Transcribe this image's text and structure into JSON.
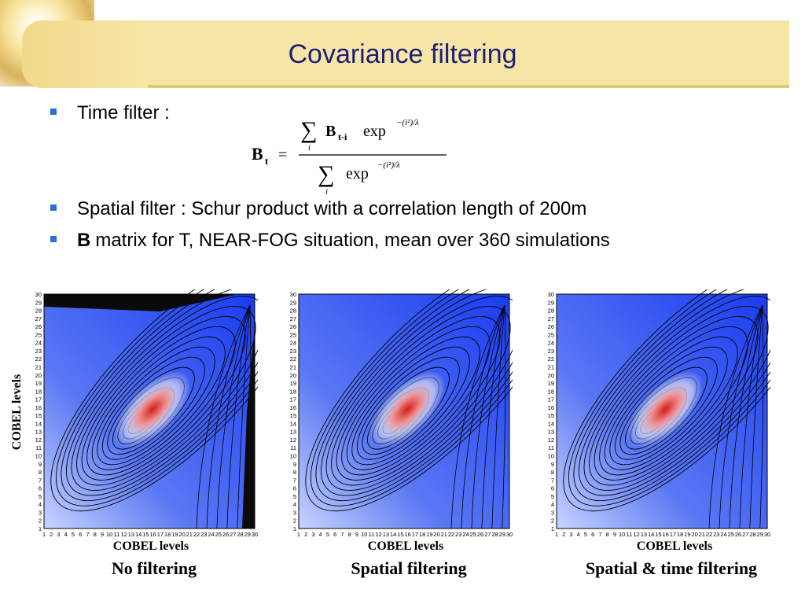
{
  "slide": {
    "title": "Covariance filtering",
    "bullets": {
      "time_filter": "Time filter :",
      "spatial_filter": "Spatial filter : Schur product with a correlation length of 200m",
      "b_matrix_bold": "B",
      "b_matrix_rest": "matrix for T, NEAR-FOG situation, mean over 360 simulations"
    },
    "formula": {
      "lhs_symbol": "B",
      "lhs_subscript": "t",
      "equals": "=",
      "sum_symbol": "∑",
      "sum_index": "i",
      "num_symbol": "B",
      "num_subscript": "t-i",
      "exp": "exp",
      "exponent": "−(i²)/λ"
    }
  },
  "chart_data": [
    {
      "type": "heatmap",
      "title": "No filtering",
      "xlabel": "COBEL levels",
      "ylabel": "COBEL levels",
      "x_ticks": [
        "1",
        "2",
        "3",
        "4",
        "5",
        "6",
        "7",
        "8",
        "9",
        "10",
        "11",
        "12",
        "13",
        "14",
        "15",
        "16",
        "17",
        "18",
        "19",
        "20",
        "21",
        "22",
        "23",
        "24",
        "25",
        "26",
        "27",
        "28",
        "29",
        "30"
      ],
      "y_ticks": [
        "1",
        "2",
        "3",
        "4",
        "5",
        "6",
        "7",
        "8",
        "9",
        "10",
        "11",
        "12",
        "13",
        "14",
        "15",
        "16",
        "17",
        "18",
        "19",
        "20",
        "21",
        "22",
        "23",
        "24",
        "25",
        "26",
        "27",
        "28",
        "29",
        "30"
      ],
      "xlim": [
        1,
        30
      ],
      "ylim": [
        1,
        30
      ],
      "peak": [
        14,
        14
      ],
      "colors": {
        "low": "#1a3cf0",
        "mid": "#ffffff",
        "high": "#d21e1e"
      }
    },
    {
      "type": "heatmap",
      "title": "Spatial filtering",
      "xlabel": "COBEL levels",
      "x_ticks": [
        "1",
        "2",
        "3",
        "4",
        "5",
        "6",
        "7",
        "8",
        "9",
        "10",
        "11",
        "12",
        "13",
        "14",
        "15",
        "16",
        "17",
        "18",
        "19",
        "20",
        "21",
        "22",
        "23",
        "24",
        "25",
        "26",
        "27",
        "28",
        "29",
        "30"
      ],
      "y_ticks": [
        "1",
        "2",
        "3",
        "4",
        "5",
        "6",
        "7",
        "8",
        "9",
        "10",
        "11",
        "12",
        "13",
        "14",
        "15",
        "16",
        "17",
        "18",
        "19",
        "20",
        "21",
        "22",
        "23",
        "24",
        "25",
        "26",
        "27",
        "28",
        "29",
        "30"
      ],
      "xlim": [
        1,
        30
      ],
      "ylim": [
        1,
        30
      ],
      "peak": [
        14,
        14
      ],
      "colors": {
        "low": "#1a3cf0",
        "mid": "#ffffff",
        "high": "#d21e1e"
      }
    },
    {
      "type": "heatmap",
      "title": "Spatial & time filtering",
      "xlabel": "COBEL levels",
      "x_ticks": [
        "1",
        "2",
        "3",
        "4",
        "5",
        "6",
        "7",
        "8",
        "9",
        "10",
        "11",
        "12",
        "13",
        "14",
        "15",
        "16",
        "17",
        "18",
        "19",
        "20",
        "21",
        "22",
        "23",
        "24",
        "25",
        "26",
        "27",
        "28",
        "29",
        "30"
      ],
      "y_ticks": [
        "1",
        "2",
        "3",
        "4",
        "5",
        "6",
        "7",
        "8",
        "9",
        "10",
        "11",
        "12",
        "13",
        "14",
        "15",
        "16",
        "17",
        "18",
        "19",
        "20",
        "21",
        "22",
        "23",
        "24",
        "25",
        "26",
        "27",
        "28",
        "29",
        "30"
      ],
      "xlim": [
        1,
        30
      ],
      "ylim": [
        1,
        30
      ],
      "peak": [
        14,
        14
      ],
      "colors": {
        "low": "#1a3cf0",
        "mid": "#ffffff",
        "high": "#d21e1e"
      }
    }
  ]
}
